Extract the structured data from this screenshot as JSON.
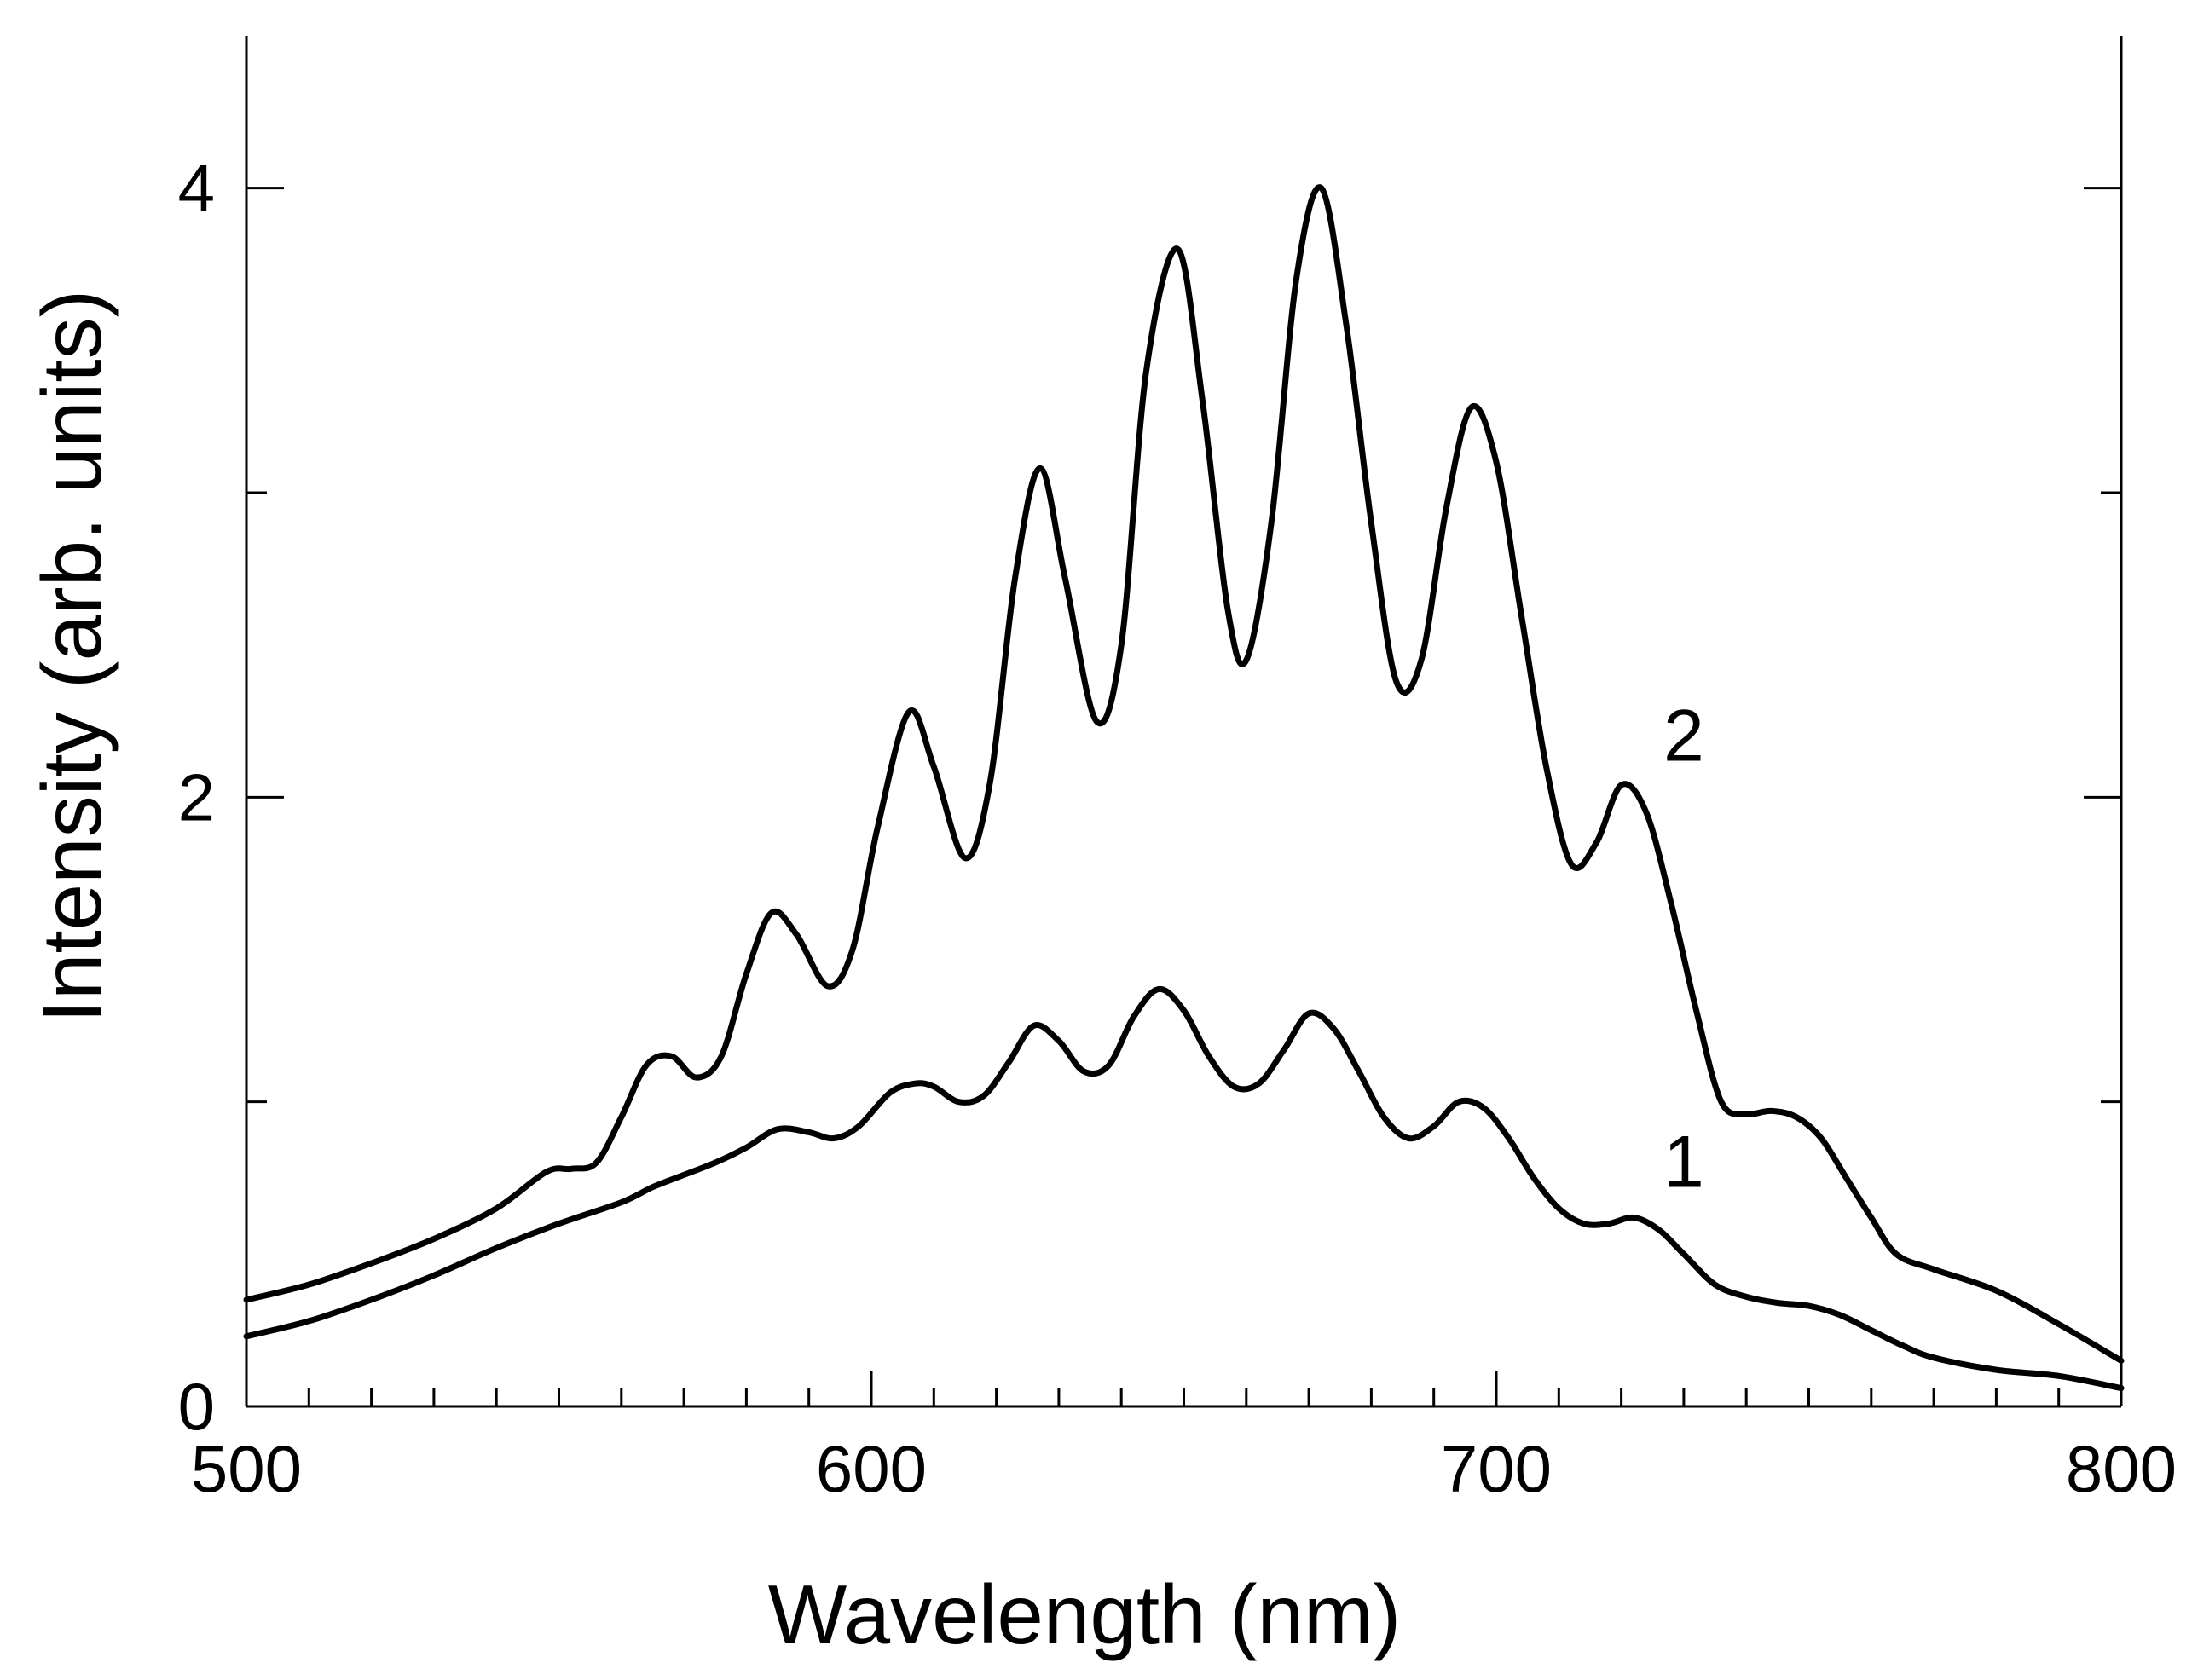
{
  "chart_data": {
    "type": "line",
    "title": "",
    "xlabel": "Wavelength (nm)",
    "ylabel": "Intensity (arb. units)",
    "xlim": [
      500,
      800
    ],
    "ylim": [
      0,
      4.5
    ],
    "xticks": [
      500,
      600,
      700,
      800
    ],
    "yticks": [
      0,
      2,
      4
    ],
    "x_minor_step": 10,
    "y_minor_step": 1,
    "grid": false,
    "legend": "none",
    "series": [
      {
        "name": "1",
        "label_at": [
          730,
          0.72
        ],
        "x": [
          500,
          510,
          520,
          530,
          540,
          550,
          560,
          565,
          570,
          575,
          580,
          585,
          590,
          594,
          598,
          603,
          607,
          610,
          614,
          618,
          622,
          626,
          630,
          634,
          638,
          642,
          646,
          650,
          654,
          658,
          662,
          666,
          670,
          674,
          678,
          682,
          686,
          690,
          694,
          698,
          702,
          706,
          710,
          714,
          718,
          722,
          726,
          730,
          735,
          740,
          745,
          750,
          755,
          760,
          765,
          770,
          780,
          790,
          800
        ],
        "y": [
          0.23,
          0.28,
          0.35,
          0.43,
          0.52,
          0.6,
          0.67,
          0.72,
          0.76,
          0.8,
          0.85,
          0.91,
          0.9,
          0.88,
          0.92,
          1.03,
          1.06,
          1.05,
          1.0,
          1.02,
          1.13,
          1.25,
          1.2,
          1.1,
          1.12,
          1.28,
          1.37,
          1.3,
          1.15,
          1.05,
          1.06,
          1.17,
          1.29,
          1.24,
          1.1,
          0.95,
          0.88,
          0.92,
          1.0,
          0.98,
          0.88,
          0.75,
          0.65,
          0.6,
          0.6,
          0.62,
          0.58,
          0.5,
          0.4,
          0.36,
          0.34,
          0.33,
          0.3,
          0.25,
          0.2,
          0.16,
          0.12,
          0.1,
          0.06
        ]
      },
      {
        "name": "2",
        "label_at": [
          730,
          2.12
        ],
        "x": [
          500,
          510,
          520,
          530,
          540,
          548,
          552,
          556,
          560,
          564,
          568,
          572,
          576,
          580,
          584,
          588,
          593,
          597,
          601,
          606,
          610,
          615,
          619,
          623,
          627,
          631,
          636,
          640,
          644,
          649,
          653,
          657,
          660,
          664,
          668,
          672,
          676,
          680,
          684,
          688,
          692,
          696,
          700,
          704,
          708,
          712,
          716,
          720,
          724,
          728,
          732,
          736,
          740,
          744,
          748,
          752,
          756,
          760,
          764,
          770,
          780,
          790,
          800
        ],
        "y": [
          0.35,
          0.4,
          0.47,
          0.55,
          0.65,
          0.77,
          0.78,
          0.8,
          0.95,
          1.12,
          1.15,
          1.08,
          1.15,
          1.42,
          1.62,
          1.55,
          1.38,
          1.5,
          1.9,
          2.28,
          2.1,
          1.8,
          2.05,
          2.72,
          3.08,
          2.72,
          2.25,
          2.5,
          3.4,
          3.8,
          3.3,
          2.62,
          2.45,
          2.9,
          3.7,
          4.0,
          3.55,
          2.9,
          2.38,
          2.45,
          2.95,
          3.28,
          3.1,
          2.6,
          2.1,
          1.78,
          1.85,
          2.04,
          1.95,
          1.65,
          1.3,
          1.0,
          0.96,
          0.97,
          0.95,
          0.88,
          0.75,
          0.62,
          0.5,
          0.45,
          0.38,
          0.27,
          0.15
        ]
      }
    ]
  }
}
